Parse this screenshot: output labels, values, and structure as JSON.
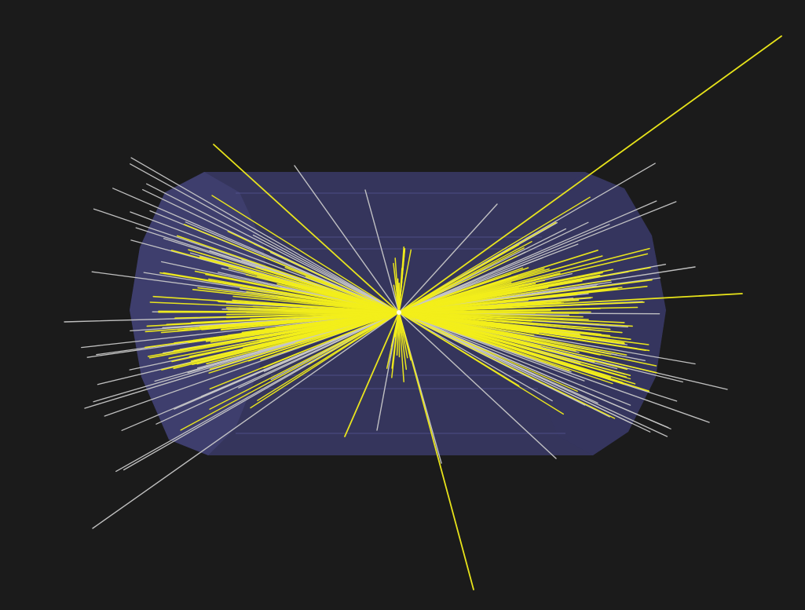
{
  "viewer": {
    "background_color": "#1b1b1b",
    "detector_color": "#3f3f74",
    "detector_edge_color": "#5a5a9a",
    "track_primary_color": "#f2ee1a",
    "track_secondary_color": "#c8c8c8",
    "view": "3d-perspective",
    "objects": [
      "detector-barrel",
      "particle-tracks",
      "collision-vertex"
    ]
  }
}
